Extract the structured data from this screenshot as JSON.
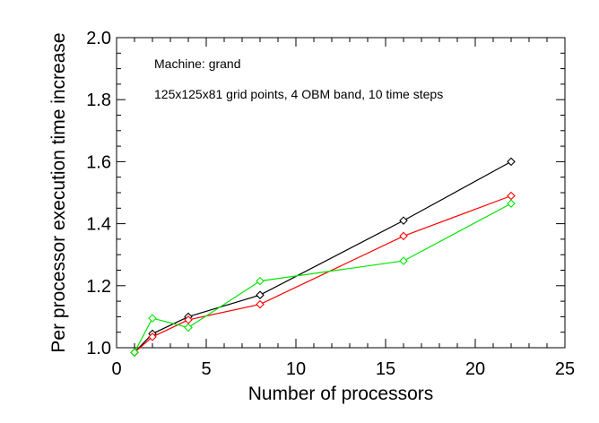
{
  "chart_data": {
    "type": "line",
    "title": "",
    "xlabel": "Number of processors",
    "ylabel": "Per processor execution time increase",
    "xlim": [
      0,
      25
    ],
    "ylim": [
      1.0,
      2.0
    ],
    "xticks": [
      0,
      5,
      10,
      15,
      20,
      25
    ],
    "xtick_labels": [
      "0",
      "5",
      "10",
      "15",
      "20",
      "25"
    ],
    "yticks": [
      1.0,
      1.2,
      1.4,
      1.6,
      1.8,
      2.0
    ],
    "ytick_labels": [
      "1.0",
      "1.2",
      "1.4",
      "1.6",
      "1.8",
      "2.0"
    ],
    "grid": false,
    "marker": "diamond",
    "annotations": [
      "Machine: grand",
      "125x125x81 grid points, 4 OBM band, 10 time steps"
    ],
    "series": [
      {
        "color": "#000000",
        "x": [
          1,
          2,
          4,
          8,
          16,
          22
        ],
        "y": [
          0.985,
          1.045,
          1.1,
          1.17,
          1.41,
          1.6
        ]
      },
      {
        "color": "#ff0000",
        "x": [
          1,
          2,
          4,
          8,
          16,
          22
        ],
        "y": [
          0.985,
          1.035,
          1.09,
          1.14,
          1.36,
          1.49
        ]
      },
      {
        "color": "#00e600",
        "x": [
          1,
          2,
          4,
          8,
          16,
          22
        ],
        "y": [
          0.985,
          1.095,
          1.065,
          1.215,
          1.28,
          1.465
        ]
      }
    ]
  }
}
